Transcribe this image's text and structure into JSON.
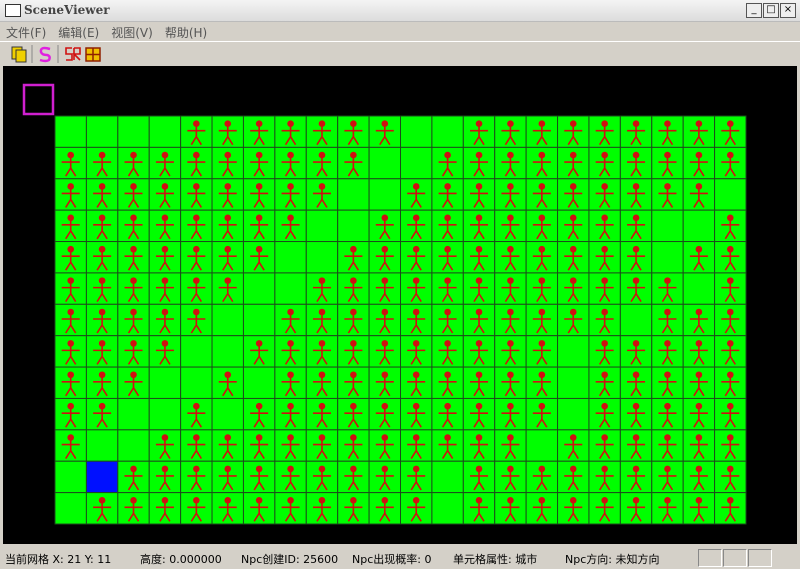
{
  "window": {
    "title": "SceneViewer"
  },
  "menu": [
    "文件(F)",
    "编辑(E)",
    "视图(V)",
    "帮助(H)"
  ],
  "status_bar": [
    "当前网格 X: 21 Y: 11",
    "高度: 0.000000",
    "Npc创建ID: 25600",
    "Npc出现概率: 0",
    "单元格属性: 城市",
    "Npc方向: 未知方向"
  ]
}
